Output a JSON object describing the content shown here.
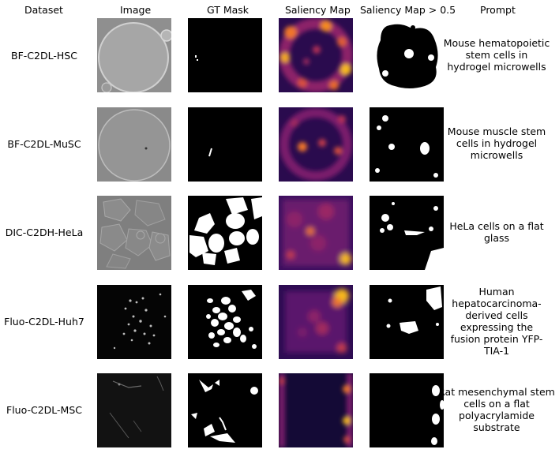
{
  "headers": {
    "dataset": "Dataset",
    "image": "Image",
    "gt_mask": "GT Mask",
    "saliency": "Saliency Map",
    "saliency_thresh": "Saliency Map > 0.5",
    "prompt": "Prompt"
  },
  "rows": [
    {
      "dataset": "BF-C2DL-HSC",
      "prompt": "Mouse hematopoietic\nstem cells in\nhydrogel microwells"
    },
    {
      "dataset": "BF-C2DL-MuSC",
      "prompt": "Mouse muscle stem\ncells in hydrogel\nmicrowells"
    },
    {
      "dataset": "DIC-C2DH-HeLa",
      "prompt": "HeLa cells on a flat\nglass"
    },
    {
      "dataset": "Fluo-C2DL-Huh7",
      "prompt": "Human\nhepatocarcinoma-\nderived cells\nexpressing the\nfusion protein YFP-\nTIA-1"
    },
    {
      "dataset": "Fluo-C2DL-MSC",
      "prompt": "Rat mesenchymal stem\ncells on a flat\npolyacrylamide\nsubstrate"
    }
  ],
  "colors": {
    "inferno_dark": "#1b0c41",
    "inferno_purple": "#781c6d",
    "inferno_orange": "#ed6925",
    "inferno_yellow": "#fcffa4"
  }
}
